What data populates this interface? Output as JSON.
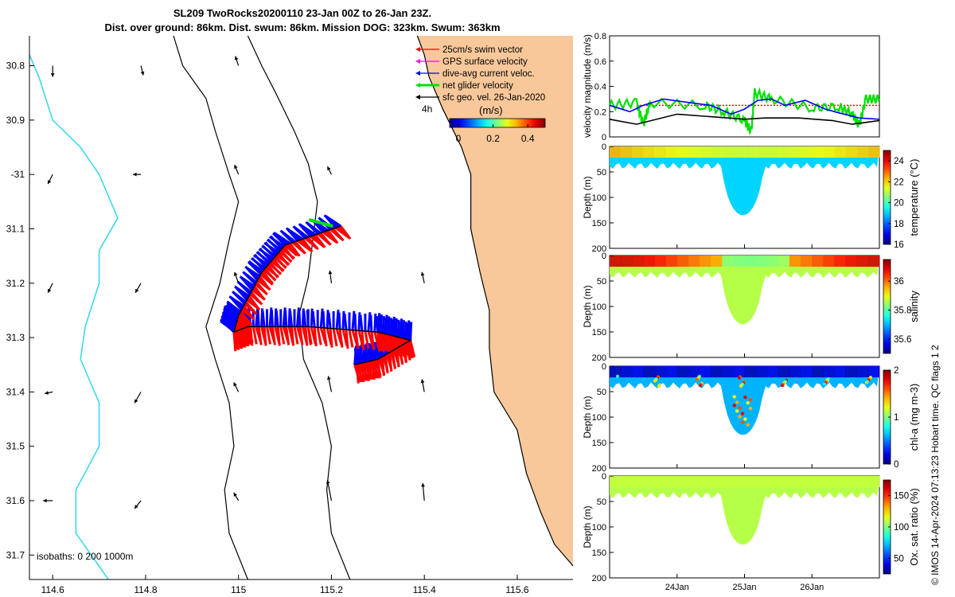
{
  "chart_data": {
    "type": "composite",
    "title_line1": "SL209 TwoRocks20200110 23-Jan 00Z to 26-Jan 23Z.",
    "title_line2": "Dist. over ground: 86km. Dist. swum: 86km. Mission DOG: 323km. Swum: 363km",
    "credit": "© IMOS 14-Apr-2024 07:13:23 Hobart time. QC flags 1  2",
    "map": {
      "x_ticks": [
        114.6,
        114.8,
        115,
        115.2,
        115.4,
        115.6
      ],
      "x_tick_labels": [
        "114.6",
        "114.8",
        "115",
        "115.2",
        "115.4",
        "115.6"
      ],
      "y_ticks": [
        -30.8,
        -30.9,
        -31,
        -31.1,
        -31.2,
        -31.3,
        -31.4,
        -31.5,
        -31.6,
        -31.7
      ],
      "y_tick_labels": [
        "30.8",
        "30.9",
        "-31",
        "31.1",
        "31.2",
        "31.3",
        "31.4",
        "31.5",
        "31.6",
        "31.7"
      ],
      "xlim": [
        114.55,
        115.72
      ],
      "ylim": [
        -31.745,
        -30.745
      ],
      "legend": [
        {
          "label": "25cm/s swim vector",
          "color": "#ff0000"
        },
        {
          "label": "GPS surface velocity",
          "color": "#ff00ff"
        },
        {
          "label": "dive-avg current veloc.",
          "color": "#0000ff"
        },
        {
          "label": "net glider velocity",
          "color": "#00e000"
        },
        {
          "label": "sfc geo. vel. 26-Jan-2020",
          "color": "#000000"
        }
      ],
      "scale_label": "4h",
      "colorbar_title": "(m/s)",
      "colorbar_ticks": [
        "0",
        "0.2",
        "0.4"
      ],
      "colorbar_range": [
        -0.05,
        0.5
      ],
      "isobath_label": "isobaths: 0   200  1000m",
      "land_color": "#f8c89a",
      "isobath_1000_color": "#30d8e8",
      "track_outbound": [
        [
          115.22,
          -31.095
        ],
        [
          115.1,
          -31.13
        ],
        [
          115.05,
          -31.18
        ],
        [
          115.0,
          -31.26
        ],
        [
          114.99,
          -31.29
        ]
      ],
      "track_return": [
        [
          114.99,
          -31.29
        ],
        [
          115.02,
          -31.28
        ],
        [
          115.15,
          -31.28
        ],
        [
          115.3,
          -31.29
        ],
        [
          115.37,
          -31.305
        ],
        [
          115.3,
          -31.34
        ],
        [
          115.25,
          -31.35
        ]
      ],
      "geo_arrows": [
        {
          "lon": 114.6,
          "lat": -30.8,
          "u": 0.0,
          "v": -0.14
        },
        {
          "lon": 114.79,
          "lat": -30.8,
          "u": 0.03,
          "v": -0.12
        },
        {
          "lon": 115.0,
          "lat": -30.8,
          "u": -0.04,
          "v": 0.12
        },
        {
          "lon": 114.6,
          "lat": -31.0,
          "u": -0.06,
          "v": -0.12
        },
        {
          "lon": 114.79,
          "lat": -31.0,
          "u": -0.1,
          "v": 0.0
        },
        {
          "lon": 115.0,
          "lat": -31.0,
          "u": -0.05,
          "v": 0.12
        },
        {
          "lon": 115.2,
          "lat": -31.0,
          "u": -0.05,
          "v": 0.1
        },
        {
          "lon": 114.6,
          "lat": -31.2,
          "u": -0.06,
          "v": -0.12
        },
        {
          "lon": 114.79,
          "lat": -31.2,
          "u": -0.07,
          "v": -0.12
        },
        {
          "lon": 115.0,
          "lat": -31.2,
          "u": -0.05,
          "v": 0.14
        },
        {
          "lon": 115.2,
          "lat": -31.2,
          "u": -0.02,
          "v": 0.16
        },
        {
          "lon": 115.4,
          "lat": -31.2,
          "u": -0.03,
          "v": 0.14
        },
        {
          "lon": 114.6,
          "lat": -31.4,
          "u": -0.1,
          "v": -0.02
        },
        {
          "lon": 114.79,
          "lat": -31.4,
          "u": -0.08,
          "v": -0.14
        },
        {
          "lon": 115.0,
          "lat": -31.4,
          "u": -0.06,
          "v": 0.12
        },
        {
          "lon": 115.2,
          "lat": -31.4,
          "u": -0.04,
          "v": 0.2
        },
        {
          "lon": 115.4,
          "lat": -31.4,
          "u": -0.03,
          "v": 0.16
        },
        {
          "lon": 114.6,
          "lat": -31.6,
          "u": -0.12,
          "v": 0.0
        },
        {
          "lon": 114.79,
          "lat": -31.6,
          "u": -0.08,
          "v": -0.1
        },
        {
          "lon": 115.0,
          "lat": -31.6,
          "u": -0.06,
          "v": 0.1
        },
        {
          "lon": 115.2,
          "lat": -31.6,
          "u": -0.05,
          "v": 0.26
        },
        {
          "lon": 115.4,
          "lat": -31.6,
          "u": -0.02,
          "v": 0.22
        }
      ],
      "coastline": [
        [
          115.385,
          -30.745
        ],
        [
          115.4,
          -30.78
        ],
        [
          115.41,
          -30.82
        ],
        [
          115.44,
          -30.88
        ],
        [
          115.48,
          -30.95
        ],
        [
          115.5,
          -31.0
        ],
        [
          115.5,
          -31.1
        ],
        [
          115.52,
          -31.18
        ],
        [
          115.54,
          -31.25
        ],
        [
          115.54,
          -31.32
        ],
        [
          115.55,
          -31.4
        ],
        [
          115.6,
          -31.47
        ],
        [
          115.62,
          -31.55
        ],
        [
          115.65,
          -31.62
        ],
        [
          115.68,
          -31.68
        ],
        [
          115.72,
          -31.72
        ]
      ],
      "isobath_200": [
        [
          114.86,
          -30.745
        ],
        [
          114.88,
          -30.8
        ],
        [
          114.93,
          -30.86
        ],
        [
          114.95,
          -30.92
        ],
        [
          114.98,
          -31.0
        ],
        [
          115.0,
          -31.05
        ],
        [
          114.98,
          -31.12
        ],
        [
          114.96,
          -31.2
        ],
        [
          114.93,
          -31.28
        ],
        [
          114.95,
          -31.34
        ],
        [
          114.98,
          -31.42
        ],
        [
          114.99,
          -31.5
        ],
        [
          114.97,
          -31.58
        ],
        [
          114.98,
          -31.66
        ],
        [
          115.02,
          -31.745
        ]
      ],
      "isobath_0": [
        [
          115.02,
          -30.745
        ],
        [
          115.05,
          -30.8
        ],
        [
          115.08,
          -30.85
        ],
        [
          115.12,
          -30.92
        ],
        [
          115.15,
          -30.98
        ],
        [
          115.17,
          -31.05
        ],
        [
          115.16,
          -31.12
        ],
        [
          115.15,
          -31.19
        ],
        [
          115.13,
          -31.26
        ],
        [
          115.14,
          -31.34
        ],
        [
          115.18,
          -31.42
        ],
        [
          115.2,
          -31.5
        ],
        [
          115.19,
          -31.58
        ],
        [
          115.2,
          -31.66
        ],
        [
          115.24,
          -31.745
        ]
      ],
      "isobath_1000": [
        [
          114.55,
          -30.78
        ],
        [
          114.57,
          -30.82
        ],
        [
          114.6,
          -30.9
        ],
        [
          114.66,
          -30.95
        ],
        [
          114.7,
          -31.0
        ],
        [
          114.74,
          -31.08
        ],
        [
          114.7,
          -31.14
        ],
        [
          114.7,
          -31.2
        ],
        [
          114.67,
          -31.28
        ],
        [
          114.66,
          -31.34
        ],
        [
          114.7,
          -31.42
        ],
        [
          114.7,
          -31.5
        ],
        [
          114.65,
          -31.58
        ],
        [
          114.65,
          -31.66
        ],
        [
          114.72,
          -31.745
        ]
      ]
    },
    "velocity_panel": {
      "ylabel": "velocity magnitude (m/s)",
      "ylim": [
        0,
        0.8
      ],
      "y_ticks": [
        "0",
        "0.2",
        "0.4",
        "0.6",
        "0.8"
      ],
      "t_start": 23.0,
      "t_end": 27.0,
      "black": [
        [
          23.0,
          0.14
        ],
        [
          23.4,
          0.1
        ],
        [
          24.0,
          0.18
        ],
        [
          24.5,
          0.16
        ],
        [
          25.0,
          0.14
        ],
        [
          25.3,
          0.15
        ],
        [
          25.8,
          0.15
        ],
        [
          26.3,
          0.13
        ],
        [
          26.6,
          0.1
        ],
        [
          27.0,
          0.13
        ]
      ],
      "blue": [
        [
          23.0,
          0.25
        ],
        [
          23.3,
          0.2
        ],
        [
          23.5,
          0.25
        ],
        [
          23.8,
          0.3
        ],
        [
          24.2,
          0.27
        ],
        [
          24.5,
          0.25
        ],
        [
          24.8,
          0.18
        ],
        [
          25.0,
          0.22
        ],
        [
          25.2,
          0.29
        ],
        [
          25.4,
          0.3
        ],
        [
          25.6,
          0.25
        ],
        [
          25.9,
          0.29
        ],
        [
          26.2,
          0.22
        ],
        [
          26.4,
          0.19
        ],
        [
          26.7,
          0.15
        ],
        [
          27.0,
          0.14
        ]
      ],
      "green_base": [
        [
          23.0,
          0.25
        ],
        [
          23.4,
          0.27
        ],
        [
          23.5,
          0.1
        ],
        [
          23.6,
          0.27
        ],
        [
          24.4,
          0.25
        ],
        [
          24.7,
          0.2
        ],
        [
          25.0,
          0.13
        ],
        [
          25.1,
          0.04
        ],
        [
          25.15,
          0.35
        ],
        [
          25.4,
          0.3
        ],
        [
          26.0,
          0.23
        ],
        [
          26.4,
          0.24
        ],
        [
          26.6,
          0.18
        ],
        [
          26.7,
          0.09
        ],
        [
          26.8,
          0.3
        ],
        [
          27.0,
          0.3
        ]
      ],
      "red_level": 0.25
    },
    "profiles": [
      {
        "name": "temperature",
        "ylabel": "Depth (m)",
        "cbar_label": "temperature (°C)",
        "cbar_ticks": [
          "16",
          "18",
          "20",
          "22",
          "24"
        ],
        "cbar_range": [
          16,
          25
        ],
        "surface_value": 22.0,
        "deep_value": 19.0
      },
      {
        "name": "salinity",
        "ylabel": "Depth (m)",
        "cbar_label": "salinity",
        "cbar_ticks": [
          "35.6",
          "35.8",
          "36"
        ],
        "cbar_range": [
          35.5,
          36.15
        ],
        "surface_value": 36.02,
        "deep_value": 35.86
      },
      {
        "name": "chl-a",
        "ylabel": "Depth (m)",
        "cbar_label": "chl-a (mg m-3)",
        "cbar_ticks": [
          "0",
          "1",
          "2"
        ],
        "cbar_range": [
          0,
          2
        ],
        "surface_value": 0.1,
        "deep_value": 0.6
      },
      {
        "name": "oxygen",
        "ylabel": "Depth (m)",
        "cbar_label": "Ox. sat. ratio (%)",
        "cbar_ticks": [
          "50",
          "100",
          "150"
        ],
        "cbar_range": [
          25,
          175
        ],
        "surface_value": 110,
        "deep_value": 108
      }
    ],
    "depth_ticks": [
      "0",
      "50",
      "100",
      "150",
      "200"
    ],
    "depth_range": [
      0,
      200
    ],
    "time_ticks": [
      {
        "t": 24.0,
        "label": "24Jan"
      },
      {
        "t": 25.0,
        "label": "25Jan"
      },
      {
        "t": 26.0,
        "label": "26Jan"
      }
    ]
  }
}
